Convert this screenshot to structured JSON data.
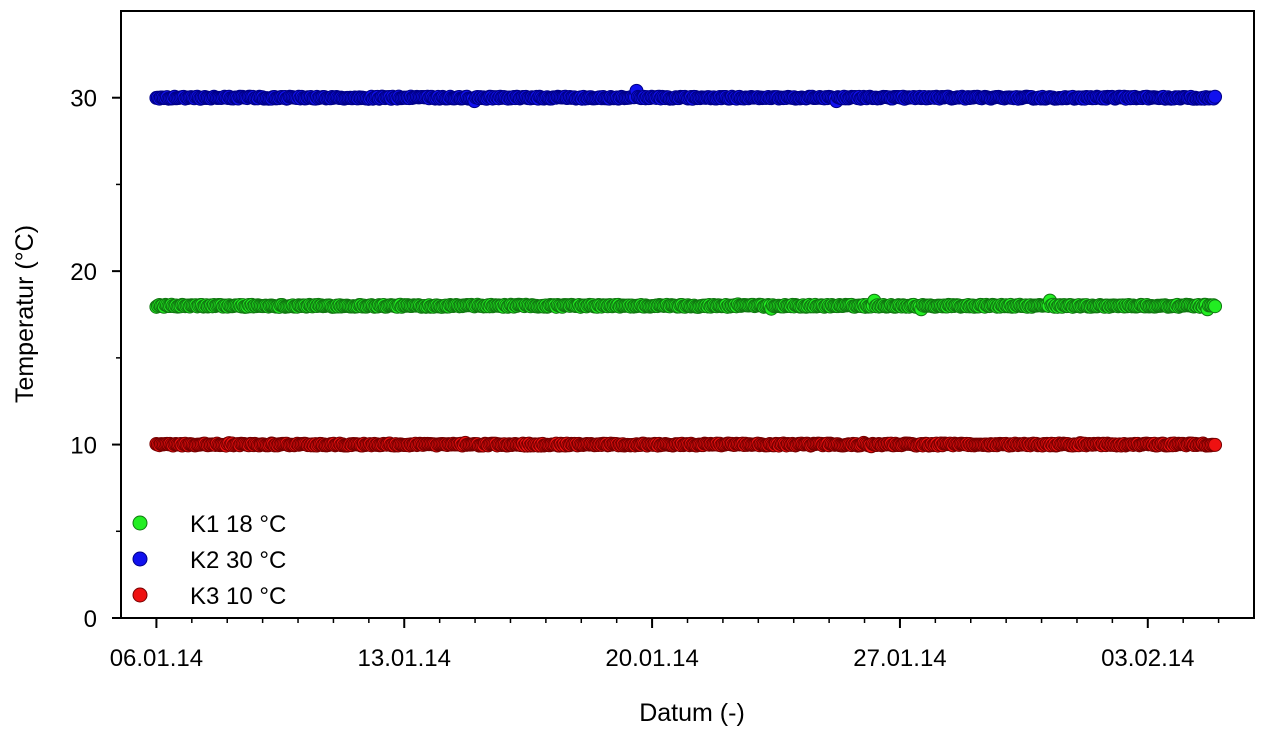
{
  "chart_data": {
    "type": "scatter",
    "title": "",
    "xlabel": "Datum (-)",
    "ylabel": "Temperatur (°C)",
    "x_start": "06.01.14",
    "x_end": "05.02.14",
    "xlim": [
      "05.01.14",
      "06.02.14"
    ],
    "ylim": [
      0,
      35
    ],
    "x_ticks": [
      "06.01.14",
      "13.01.14",
      "20.01.14",
      "27.01.14",
      "03.02.14"
    ],
    "y_ticks": [
      0,
      10,
      20,
      30
    ],
    "grid": false,
    "legend_position": "bottom-left",
    "series": [
      {
        "name": "K1 18 °C",
        "color": "#22ee22",
        "stroke": "#117711",
        "mean": 18.0,
        "values_range": [
          17.8,
          18.3
        ]
      },
      {
        "name": "K2 30 °C",
        "color": "#1111ee",
        "stroke": "#000088",
        "mean": 30.0,
        "values_range": [
          29.8,
          30.4
        ]
      },
      {
        "name": "K3 10 °C",
        "color": "#ee1111",
        "stroke": "#770000",
        "mean": 10.0,
        "values_range": [
          9.9,
          10.1
        ]
      }
    ]
  }
}
